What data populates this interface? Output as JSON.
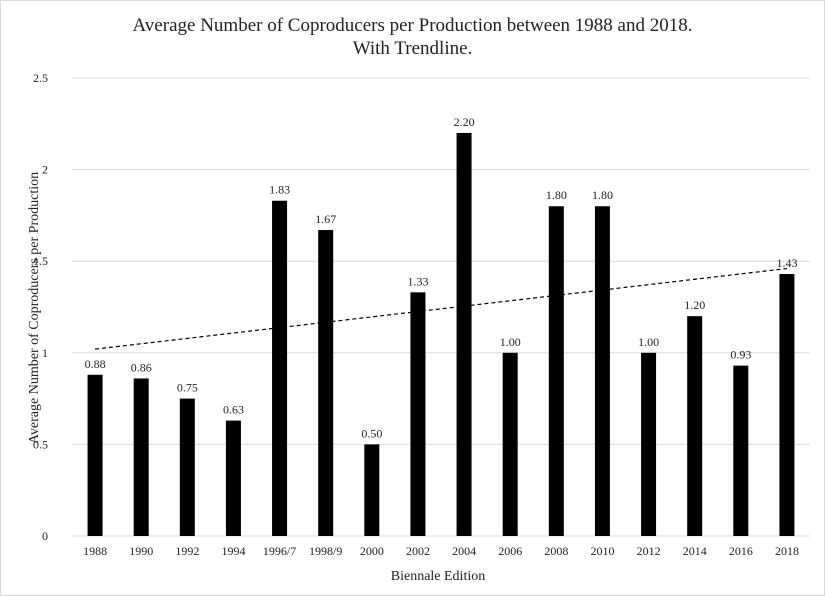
{
  "chart_data": {
    "type": "bar",
    "title": "Average Number of Coproducers per Production between 1988 and 2018.",
    "subtitle": "With Trendline.",
    "xlabel": "Biennale Edition",
    "ylabel": "Average Number of Coproducers per Production",
    "categories": [
      "1988",
      "1990",
      "1992",
      "1994",
      "1996/7",
      "1998/9",
      "2000",
      "2002",
      "2004",
      "2006",
      "2008",
      "2010",
      "2012",
      "2014",
      "2016",
      "2018"
    ],
    "values": [
      0.88,
      0.86,
      0.75,
      0.63,
      1.83,
      1.67,
      0.5,
      1.33,
      2.2,
      1.0,
      1.8,
      1.8,
      1.0,
      1.2,
      0.93,
      1.43
    ],
    "data_labels": [
      "0.88",
      "0.86",
      "0.75",
      "0.63",
      "1.83",
      "1.67",
      "0.50",
      "1.33",
      "2.20",
      "1.00",
      "1.80",
      "1.80",
      "1.00",
      "1.20",
      "0.93",
      "1.43"
    ],
    "ylim": [
      0,
      2.5
    ],
    "yticks": [
      "0",
      "0.5",
      "1",
      "1.5",
      "2",
      "2.5"
    ],
    "trendline": {
      "style": "dashed",
      "start": 1.02,
      "end": 1.46
    },
    "grid": true,
    "bar_color": "#000000",
    "grid_color": "#d9d9d9"
  }
}
